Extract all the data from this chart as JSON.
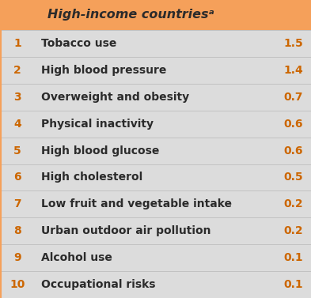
{
  "header": "High-income countriesᵃ",
  "header_color": "#f5a05a",
  "body_bg": "#dcdcdc",
  "row_bg": "#dcdcdc",
  "text_color": "#2b2b2b",
  "rank_color": "#cc6600",
  "value_color": "#cc6600",
  "rows": [
    {
      "rank": "1",
      "label": "Tobacco use",
      "value": "1.5"
    },
    {
      "rank": "2",
      "label": "High blood pressure",
      "value": "1.4"
    },
    {
      "rank": "3",
      "label": "Overweight and obesity",
      "value": "0.7"
    },
    {
      "rank": "4",
      "label": "Physical inactivity",
      "value": "0.6"
    },
    {
      "rank": "5",
      "label": "High blood glucose",
      "value": "0.6"
    },
    {
      "rank": "6",
      "label": "High cholesterol",
      "value": "0.5"
    },
    {
      "rank": "7",
      "label": "Low fruit and vegetable intake",
      "value": "0.2"
    },
    {
      "rank": "8",
      "label": "Urban outdoor air pollution",
      "value": "0.2"
    },
    {
      "rank": "9",
      "label": "Alcohol use",
      "value": "0.1"
    },
    {
      "rank": "10",
      "label": "Occupational risks",
      "value": "0.1"
    }
  ],
  "font_size_header": 11.5,
  "font_size_body": 10.0,
  "fig_width": 3.93,
  "fig_height": 3.77,
  "dpi": 100
}
